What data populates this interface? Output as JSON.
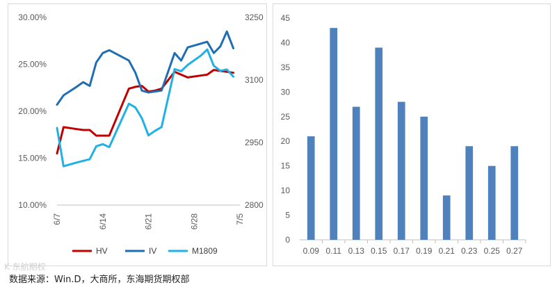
{
  "source_note": "数据来源：Win.D，大商所，东海期货期权部",
  "watermark": "K 东航期权",
  "chart_data": [
    {
      "type": "line",
      "x_tick_labels": [
        "6/7",
        "6/14",
        "6/21",
        "6/28",
        "7/5"
      ],
      "y_left": {
        "min": 0.1,
        "max": 0.3,
        "ticks": [
          0.1,
          0.15,
          0.2,
          0.25,
          0.3
        ],
        "tick_labels": [
          "10.00%",
          "15.00%",
          "20.00%",
          "25.00%",
          "30.00%"
        ]
      },
      "y_right": {
        "min": 2800,
        "max": 3250,
        "ticks": [
          2800,
          2950,
          3100,
          3250
        ],
        "tick_labels": [
          "2800",
          "2950",
          "3100",
          "3250"
        ]
      },
      "legend_position": "bottom",
      "grid": false,
      "series": [
        {
          "name": "HV",
          "axis": "left",
          "color": "#c00000",
          "x": [
            0,
            1,
            3,
            4,
            5,
            6,
            8,
            11,
            12,
            13,
            14,
            15,
            16,
            18,
            19,
            20,
            22,
            23,
            24,
            25,
            26,
            27
          ],
          "values": [
            0.155,
            0.183,
            0.181,
            0.18,
            0.18,
            0.174,
            0.174,
            0.224,
            0.226,
            0.227,
            0.221,
            0.222,
            0.224,
            0.242,
            0.239,
            0.236,
            0.238,
            0.239,
            0.244,
            0.243,
            0.242,
            0.241
          ]
        },
        {
          "name": "IV",
          "axis": "left",
          "color": "#1f6eb5",
          "x": [
            0,
            1,
            3,
            4,
            5,
            6,
            7,
            8,
            11,
            12,
            13,
            14,
            15,
            16,
            18,
            19,
            20,
            22,
            23,
            24,
            25,
            26,
            27
          ],
          "values": [
            0.207,
            0.217,
            0.226,
            0.231,
            0.227,
            0.252,
            0.262,
            0.265,
            0.254,
            0.241,
            0.222,
            0.22,
            0.221,
            0.222,
            0.262,
            0.254,
            0.268,
            0.272,
            0.274,
            0.262,
            0.269,
            0.285,
            0.267
          ]
        },
        {
          "name": "M1809",
          "axis": "right",
          "color": "#1fb1e6",
          "x": [
            0,
            1,
            3,
            4,
            5,
            6,
            7,
            8,
            11,
            12,
            13,
            14,
            15,
            16,
            18,
            19,
            20,
            22,
            23,
            24,
            25,
            26,
            27
          ],
          "values": [
            2985,
            2893,
            2902,
            2906,
            2910,
            2941,
            2946,
            2939,
            3043,
            3034,
            3008,
            2967,
            2978,
            2987,
            3126,
            3121,
            3136,
            3158,
            3173,
            3134,
            3122,
            3125,
            3108
          ]
        }
      ]
    },
    {
      "type": "bar",
      "color": "#4f81bd",
      "categories": [
        "0.09",
        "0.11",
        "0.13",
        "0.15",
        "0.17",
        "0.19",
        "0.21",
        "0.23",
        "0.25",
        "0.27"
      ],
      "values": [
        21,
        43,
        27,
        39,
        28,
        25,
        9,
        19,
        15,
        19
      ],
      "ylim": [
        0,
        45
      ],
      "yticks": [
        0,
        5,
        10,
        15,
        20,
        25,
        30,
        35,
        40,
        45
      ],
      "grid": false
    }
  ]
}
